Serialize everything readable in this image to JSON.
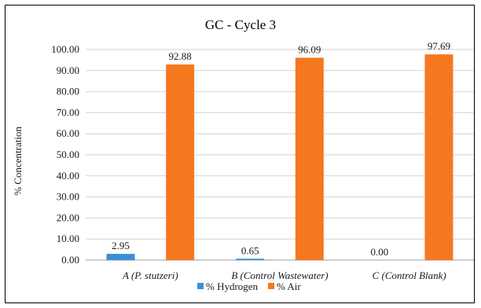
{
  "chart_data": {
    "type": "bar",
    "title": "GC - Cycle 3",
    "xlabel": "",
    "ylabel": "% Concentration",
    "ylim": [
      0,
      100
    ],
    "yticks": [
      "0.00",
      "10.00",
      "20.00",
      "30.00",
      "40.00",
      "50.00",
      "60.00",
      "70.00",
      "80.00",
      "90.00",
      "100.00"
    ],
    "categories": [
      "A (P. stutzeri)",
      "B (Control Wastewater)",
      "C (Control Blank)"
    ],
    "series": [
      {
        "name": "% Hydrogen",
        "color": "#3b8fd9",
        "values": [
          2.95,
          0.65,
          0.0
        ],
        "labels": [
          "2.95",
          "0.65",
          "0.00"
        ]
      },
      {
        "name": "% Air",
        "color": "#f5781f",
        "values": [
          92.88,
          96.09,
          97.69
        ],
        "labels": [
          "92.88",
          "96.09",
          "97.69"
        ]
      }
    ],
    "grid": true,
    "legend": "bottom"
  }
}
